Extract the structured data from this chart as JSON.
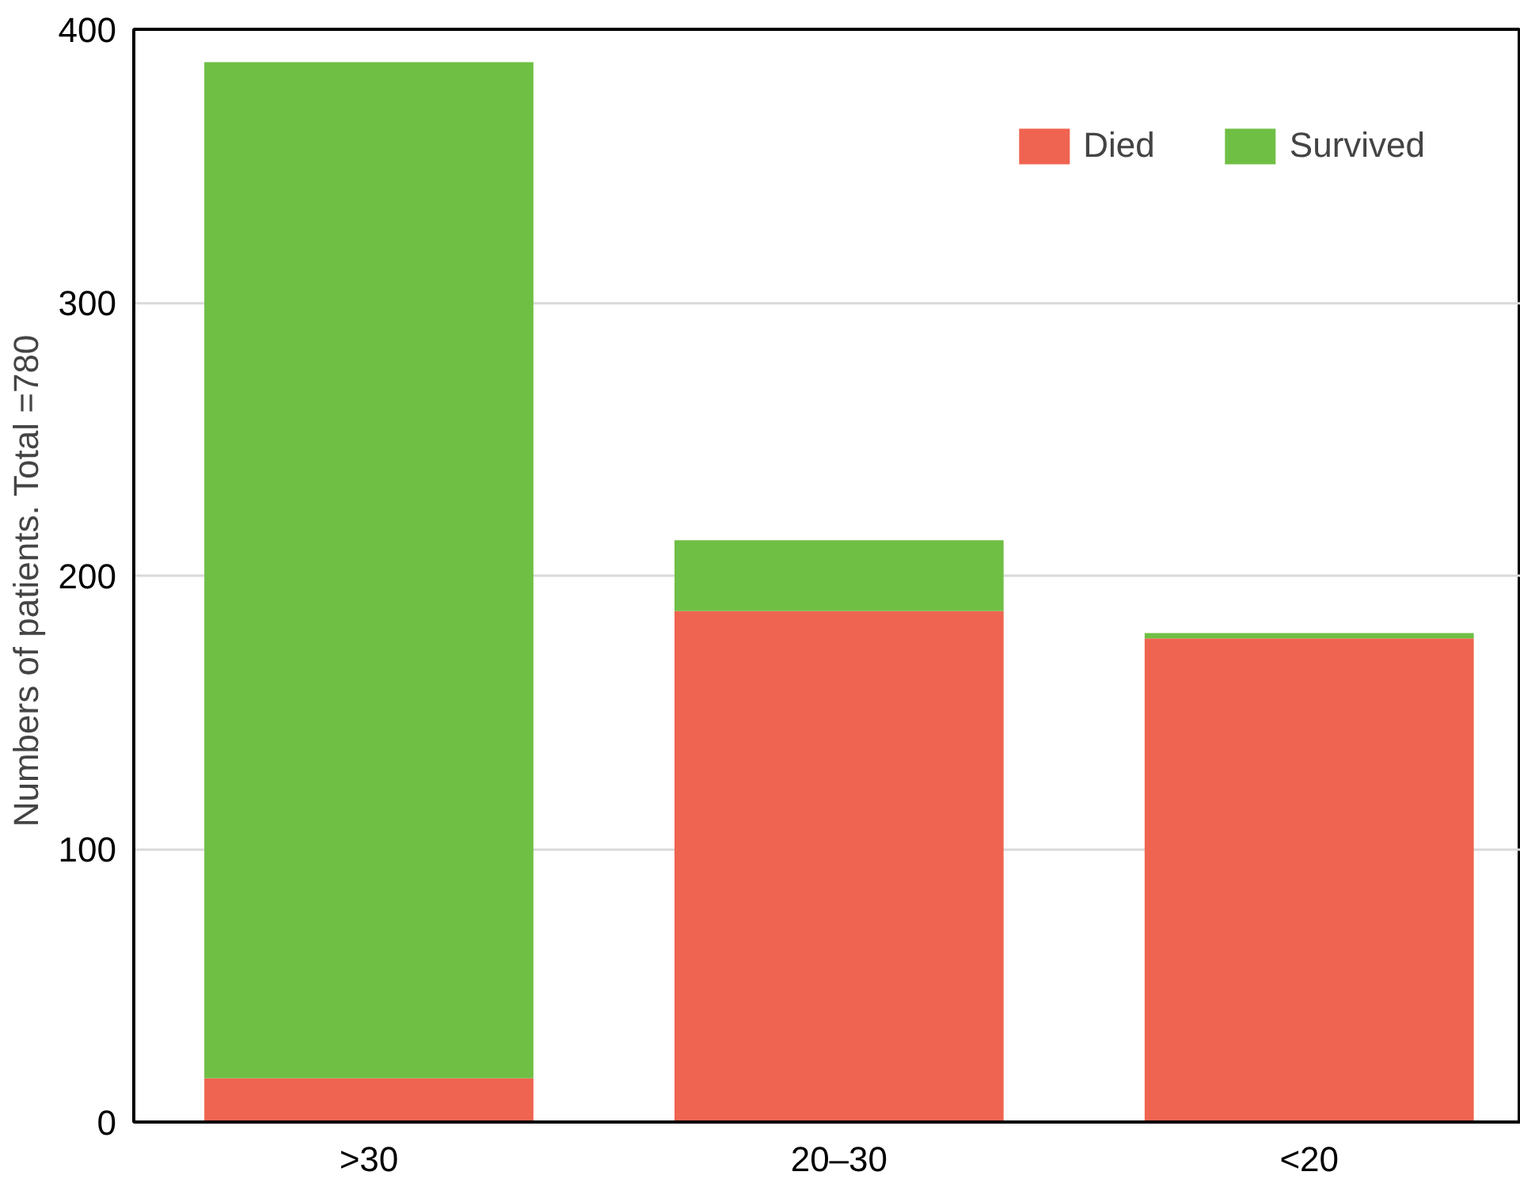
{
  "chart_data": {
    "type": "bar",
    "stacked": true,
    "ylabel": "Numbers of patients.  Total =780",
    "categories": [
      ">30",
      "20–30",
      "<20"
    ],
    "series": [
      {
        "name": "Died",
        "color": "#ef6450",
        "values": [
          16,
          187,
          177
        ]
      },
      {
        "name": "Survived",
        "color": "#6fbf45",
        "values": [
          372,
          26,
          2
        ]
      }
    ],
    "ylim": [
      0,
      400
    ],
    "yticks": [
      0,
      100,
      200,
      300,
      400
    ],
    "grid": "y",
    "legend": "top right"
  }
}
